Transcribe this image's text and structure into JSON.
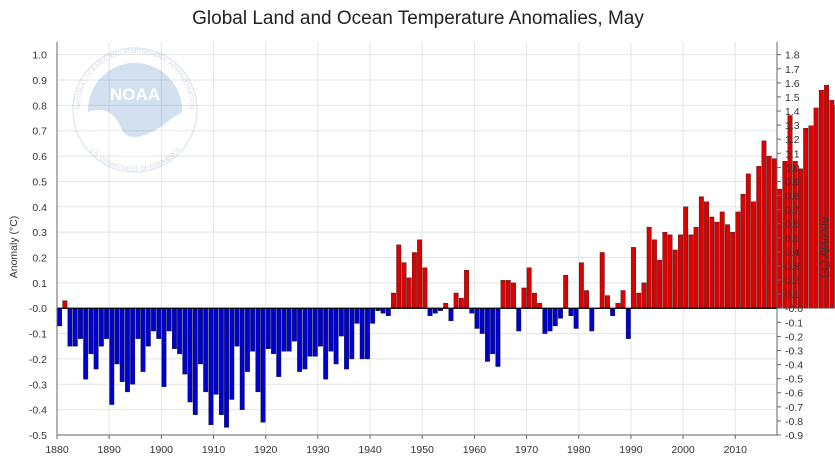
{
  "chart_data": {
    "type": "bar",
    "title": "Global Land and Ocean Temperature Anomalies, May",
    "ylabel_left": "Anomaly (°C)",
    "ylabel_right": "Anomaly (°F)",
    "x_ticks": [
      "1880",
      "1890",
      "1900",
      "1910",
      "1920",
      "1930",
      "1940",
      "1950",
      "1960",
      "1970",
      "1980",
      "1990",
      "2000",
      "2010"
    ],
    "y_left_ticks": [
      "1.0",
      "0.9",
      "0.8",
      "0.7",
      "0.6",
      "0.5",
      "0.4",
      "0.3",
      "0.2",
      "0.1",
      "-0.0",
      "-0.1",
      "-0.2",
      "-0.3",
      "-0.4",
      "-0.5"
    ],
    "y_right_ticks": [
      "1.8",
      "1.7",
      "1.6",
      "1.5",
      "1.4",
      "1.3",
      "1.2",
      "1.1",
      "1.0",
      "0.9",
      "0.8",
      "0.7",
      "0.6",
      "0.5",
      "0.4",
      "0.3",
      "0.2",
      "0.1",
      "-0.0",
      "-0.1",
      "-0.2",
      "-0.3",
      "-0.4",
      "-0.5",
      "-0.6",
      "-0.7",
      "-0.8",
      "-0.9"
    ],
    "ylim_celsius": [
      -0.5,
      1.05
    ],
    "xlim": [
      1880,
      2018
    ],
    "grid": true,
    "positive_color": "#dd0000",
    "negative_color": "#0000cc",
    "years_start": 1880,
    "values": [
      -0.07,
      0.03,
      -0.15,
      -0.15,
      -0.12,
      -0.28,
      -0.18,
      -0.24,
      -0.15,
      -0.12,
      -0.38,
      -0.22,
      -0.29,
      -0.33,
      -0.3,
      -0.12,
      -0.25,
      -0.15,
      -0.09,
      -0.12,
      -0.31,
      -0.09,
      -0.16,
      -0.18,
      -0.26,
      -0.37,
      -0.42,
      -0.22,
      -0.33,
      -0.46,
      -0.34,
      -0.42,
      -0.47,
      -0.36,
      -0.15,
      -0.4,
      -0.25,
      -0.17,
      -0.33,
      -0.45,
      -0.16,
      -0.18,
      -0.27,
      -0.17,
      -0.17,
      -0.13,
      -0.25,
      -0.24,
      -0.19,
      -0.19,
      -0.15,
      -0.28,
      -0.17,
      -0.22,
      -0.11,
      -0.24,
      -0.2,
      -0.06,
      -0.2,
      -0.2,
      -0.06,
      -0.01,
      -0.02,
      -0.03,
      0.06,
      0.25,
      0.18,
      0.12,
      0.22,
      0.27,
      0.16,
      -0.03,
      -0.02,
      -0.01,
      0.02,
      -0.05,
      0.06,
      0.04,
      0.15,
      -0.02,
      -0.08,
      -0.1,
      -0.21,
      -0.18,
      -0.23,
      0.11,
      0.11,
      0.1,
      -0.09,
      0.08,
      0.16,
      0.06,
      0.02,
      -0.1,
      -0.09,
      -0.07,
      -0.04,
      0.13,
      -0.03,
      -0.08,
      0.18,
      0.07,
      -0.09,
      0.0,
      0.22,
      0.05,
      -0.03,
      0.02,
      0.07,
      -0.12,
      0.24,
      0.06,
      0.1,
      0.32,
      0.27,
      0.19,
      0.3,
      0.29,
      0.23,
      0.29,
      0.4,
      0.29,
      0.32,
      0.44,
      0.42,
      0.36,
      0.34,
      0.38,
      0.33,
      0.3,
      0.38,
      0.45,
      0.53,
      0.42,
      0.56,
      0.66,
      0.6,
      0.59,
      0.47,
      0.58,
      0.76,
      0.58,
      0.55,
      0.71,
      0.72,
      0.79,
      0.86,
      0.88,
      0.82,
      0.8
    ]
  },
  "watermark": {
    "logo_text": "NOAA",
    "arc_top": "NATIONAL OCEANIC AND ATMOSPHERIC ADMINISTRATION",
    "arc_bottom": "U.S. DEPARTMENT OF COMMERCE"
  }
}
